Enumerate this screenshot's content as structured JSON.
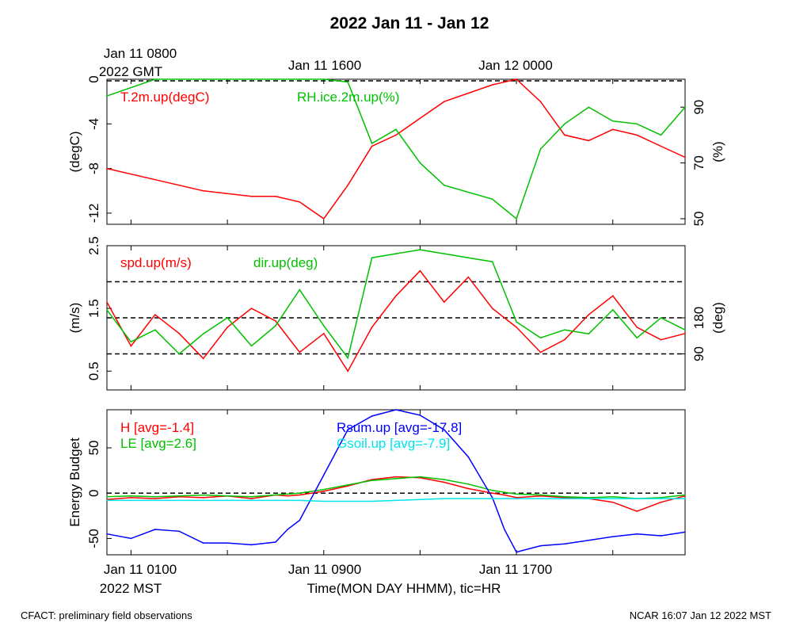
{
  "title": "2022 Jan 11 - Jan 12",
  "footer_left": "CFACT: preliminary field observations",
  "footer_right": "NCAR 16:07 Jan 12 2022 MST",
  "top_axis": {
    "labels": [
      "Jan 11 0800",
      "Jan 11 1600",
      "Jan 12 0000"
    ],
    "tz": "2022 GMT"
  },
  "bottom_axis": {
    "labels": [
      "Jan 11 0100",
      "Jan 11 0900",
      "Jan 11 1700"
    ],
    "tz": "2022 MST",
    "xlabel": "Time(MON DAY HHMM), tic=HR"
  },
  "colors": {
    "red": "#ff0000",
    "green": "#00c000",
    "blue": "#0000ff",
    "cyan": "#00e5ee"
  },
  "chart_data": [
    {
      "type": "line",
      "x_hours_mst": [
        0,
        2,
        4,
        6,
        7,
        8,
        9,
        10,
        11,
        12,
        13,
        14,
        16,
        17,
        18,
        19,
        20,
        21,
        22,
        23,
        24
      ],
      "left_ylabel": "(degC)",
      "left_yticks": [
        "0",
        "-4",
        "-8",
        "-12"
      ],
      "left_ylim": [
        -13,
        0
      ],
      "right_ylabel": "(%)",
      "right_yticks": [
        "50",
        "70",
        "90"
      ],
      "right_ylim": [
        48,
        100
      ],
      "series": [
        {
          "name": "T.2m.up(degC)",
          "axis": "left",
          "color": "#ff0000",
          "values": [
            -8,
            -9,
            -10,
            -10.5,
            -10.5,
            -11,
            -12.5,
            -9.5,
            -6,
            -5,
            -3.5,
            -2,
            -0.5,
            0,
            -2,
            -5,
            -5.5,
            -4.5,
            -5,
            -6,
            -7
          ]
        },
        {
          "name": "RH.ice.2m.up(%)",
          "axis": "right",
          "color": "#00c000",
          "values": [
            94,
            100,
            100,
            100,
            100,
            100,
            100,
            99,
            77,
            82,
            70,
            62,
            57,
            50,
            75,
            84,
            90,
            85,
            84,
            80,
            90
          ]
        }
      ]
    },
    {
      "type": "line",
      "x_hours_mst": [
        0,
        1,
        2,
        3,
        4,
        5,
        6,
        7,
        8,
        9,
        10,
        11,
        12,
        13,
        14,
        15,
        16,
        17,
        18,
        19,
        20,
        21,
        22,
        23,
        24
      ],
      "left_ylabel": "(m/s)",
      "left_yticks": [
        "0.5",
        "1.5",
        "2.5"
      ],
      "left_ylim": [
        0.2,
        2.5
      ],
      "right_ylabel": "(deg)",
      "right_yticks": [
        "90",
        "180"
      ],
      "right_ylim": [
        0,
        360
      ],
      "series": [
        {
          "name": "spd.up(m/s)",
          "axis": "left",
          "color": "#ff0000",
          "values": [
            1.6,
            0.9,
            1.4,
            1.1,
            0.7,
            1.2,
            1.5,
            1.3,
            0.8,
            1.1,
            0.5,
            1.2,
            1.7,
            2.1,
            1.6,
            2.0,
            1.5,
            1.2,
            0.8,
            1.0,
            1.4,
            1.7,
            1.2,
            1.0,
            1.1
          ]
        },
        {
          "name": "dir.up(deg)",
          "axis": "right",
          "color": "#00c000",
          "values": [
            200,
            120,
            150,
            90,
            140,
            180,
            110,
            160,
            250,
            160,
            80,
            330,
            340,
            350,
            340,
            330,
            320,
            170,
            130,
            150,
            140,
            200,
            130,
            180,
            150
          ]
        }
      ],
      "ref_lines_deg": [
        90,
        180,
        270
      ]
    },
    {
      "type": "line",
      "x_hours_mst": [
        0,
        1,
        2,
        3,
        4,
        5,
        6,
        7,
        7.5,
        8,
        9,
        10,
        11,
        12,
        13,
        14,
        15,
        16,
        16.5,
        17,
        18,
        19,
        20,
        21,
        22,
        23,
        24
      ],
      "ylabel": "Energy Budget",
      "yticks": [
        "50",
        "0",
        "-50"
      ],
      "ylim": [
        -68,
        92
      ],
      "series": [
        {
          "name": "H [avg=-1.4]",
          "color": "#ff0000",
          "values": [
            -7,
            -5,
            -6,
            -4,
            -5,
            -3,
            -6,
            -2,
            -3,
            -2,
            2,
            8,
            15,
            18,
            17,
            12,
            5,
            0,
            -2,
            -5,
            -3,
            -5,
            -6,
            -10,
            -20,
            -10,
            -3
          ]
        },
        {
          "name": "LE [avg=2.6]",
          "color": "#00c000",
          "values": [
            -4,
            -3,
            -4,
            -3,
            -2,
            -3,
            -4,
            -2,
            -1,
            0,
            4,
            9,
            14,
            16,
            18,
            15,
            10,
            3,
            1,
            -1,
            -2,
            -4,
            -5,
            -4,
            -6,
            -5,
            -2
          ]
        },
        {
          "name": "Rsum.up [avg=-17.8]",
          "color": "#0000ff",
          "values": [
            -45,
            -50,
            -40,
            -42,
            -55,
            -55,
            -57,
            -54,
            -40,
            -30,
            20,
            70,
            85,
            92,
            86,
            70,
            40,
            -5,
            -40,
            -65,
            -58,
            -56,
            -52,
            -48,
            -45,
            -47,
            -43
          ]
        },
        {
          "name": "Gsoil.up [avg=-7.9]",
          "color": "#00e5ee",
          "values": [
            -8,
            -8,
            -8,
            -8,
            -8,
            -8,
            -8,
            -8,
            -8,
            -8,
            -9,
            -9,
            -9,
            -8,
            -7,
            -6,
            -6,
            -6,
            -6,
            -6,
            -6,
            -6,
            -6,
            -6,
            -6,
            -6,
            -6
          ]
        }
      ],
      "ref_lines": [
        0
      ]
    }
  ]
}
